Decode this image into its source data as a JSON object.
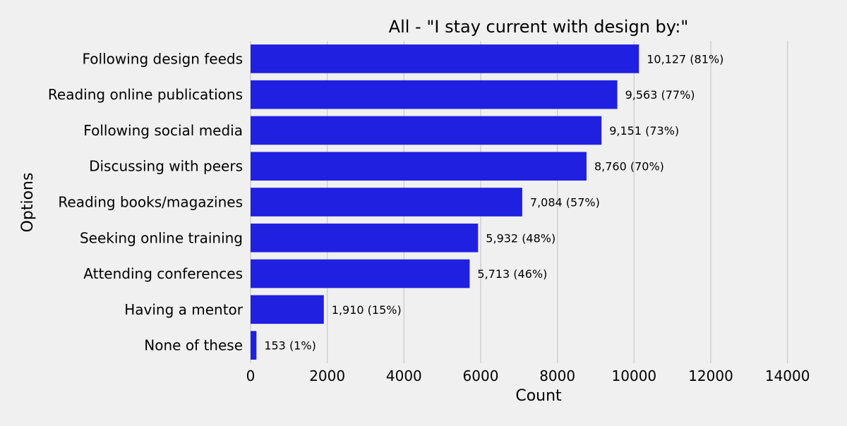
{
  "chart_data": {
    "type": "bar",
    "orientation": "horizontal",
    "title": "All - \"I stay current with design by:\"",
    "xlabel": "Count",
    "ylabel": "Options",
    "xlim": [
      0,
      15000
    ],
    "xticks": [
      0,
      2000,
      4000,
      6000,
      8000,
      10000,
      12000,
      14000
    ],
    "grid": "vertical",
    "bar_color": "#2020e0",
    "background_color": "#f0f0f0",
    "grid_color": "#cbcbcb",
    "categories": [
      "Following design feeds",
      "Reading online publications",
      "Following social media",
      "Discussing with peers",
      "Reading books/magazines",
      "Seeking online training",
      "Attending conferences",
      "Having a mentor",
      "None of these"
    ],
    "values": [
      10127,
      9563,
      9151,
      8760,
      7084,
      5932,
      5713,
      1910,
      153
    ],
    "data_labels": [
      "10,127 (81%)",
      "9,563 (77%)",
      "9,151 (73%)",
      "8,760 (70%)",
      "7,084 (57%)",
      "5,932 (48%)",
      "5,713 (46%)",
      "1,910 (15%)",
      "153 (1%)"
    ]
  }
}
